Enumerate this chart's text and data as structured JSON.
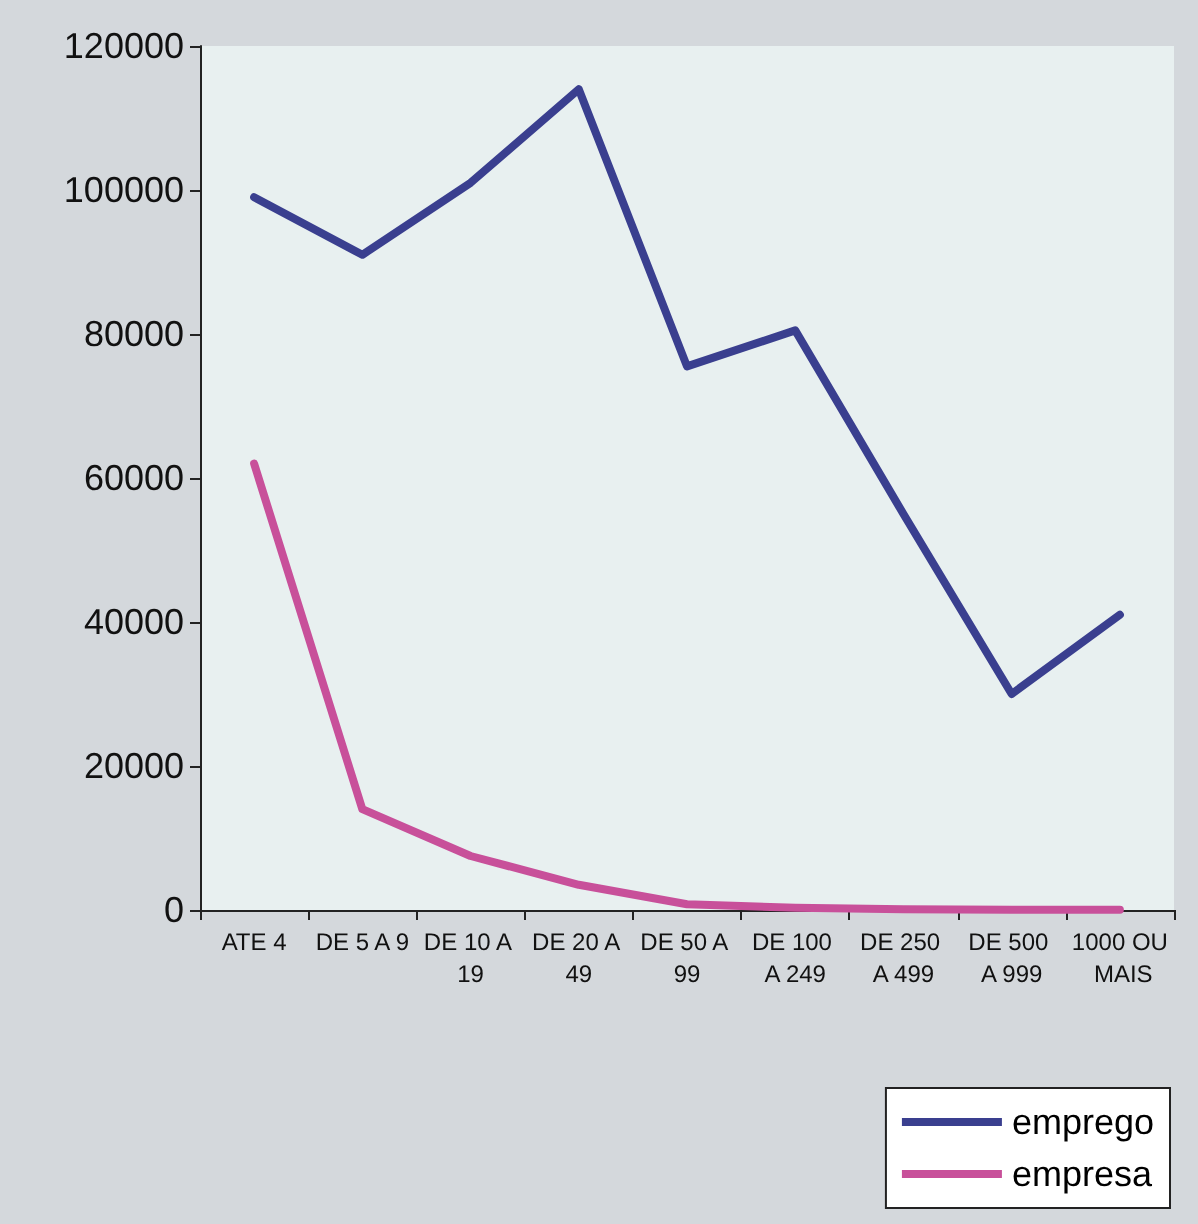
{
  "chart_data": {
    "type": "line",
    "categories": [
      "ATE 4",
      "DE 5 A 9",
      "DE 10 A 19",
      "DE 20 A 49",
      "DE 50 A 99",
      "DE 100 A 249",
      "DE 250 A 499",
      "DE 500 A 999",
      "1000 OU MAIS"
    ],
    "series": [
      {
        "name": "emprego",
        "color": "#3a3f8f",
        "values": [
          99000,
          91000,
          101000,
          114000,
          75500,
          80500,
          55000,
          30000,
          41000
        ]
      },
      {
        "name": "empresa",
        "color": "#c8509a",
        "values": [
          62000,
          14000,
          7500,
          3500,
          800,
          300,
          100,
          50,
          20
        ]
      }
    ],
    "ylim": [
      0,
      120000
    ],
    "yticks": [
      0,
      20000,
      40000,
      60000,
      80000,
      100000,
      120000
    ],
    "grid": false,
    "legend": "bottom right",
    "marker": "none",
    "line_style": "solid"
  }
}
